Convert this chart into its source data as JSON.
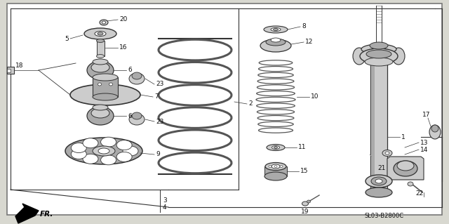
{
  "bg_color": "#d8d8d0",
  "border_color": "#555555",
  "diagram_code": "SL03-B2800C",
  "label_font_size": 6.5,
  "line_color": "#333333",
  "text_color": "#111111",
  "white": "#ffffff",
  "light_gray": "#cccccc",
  "mid_gray": "#aaaaaa",
  "dark_gray": "#888888"
}
